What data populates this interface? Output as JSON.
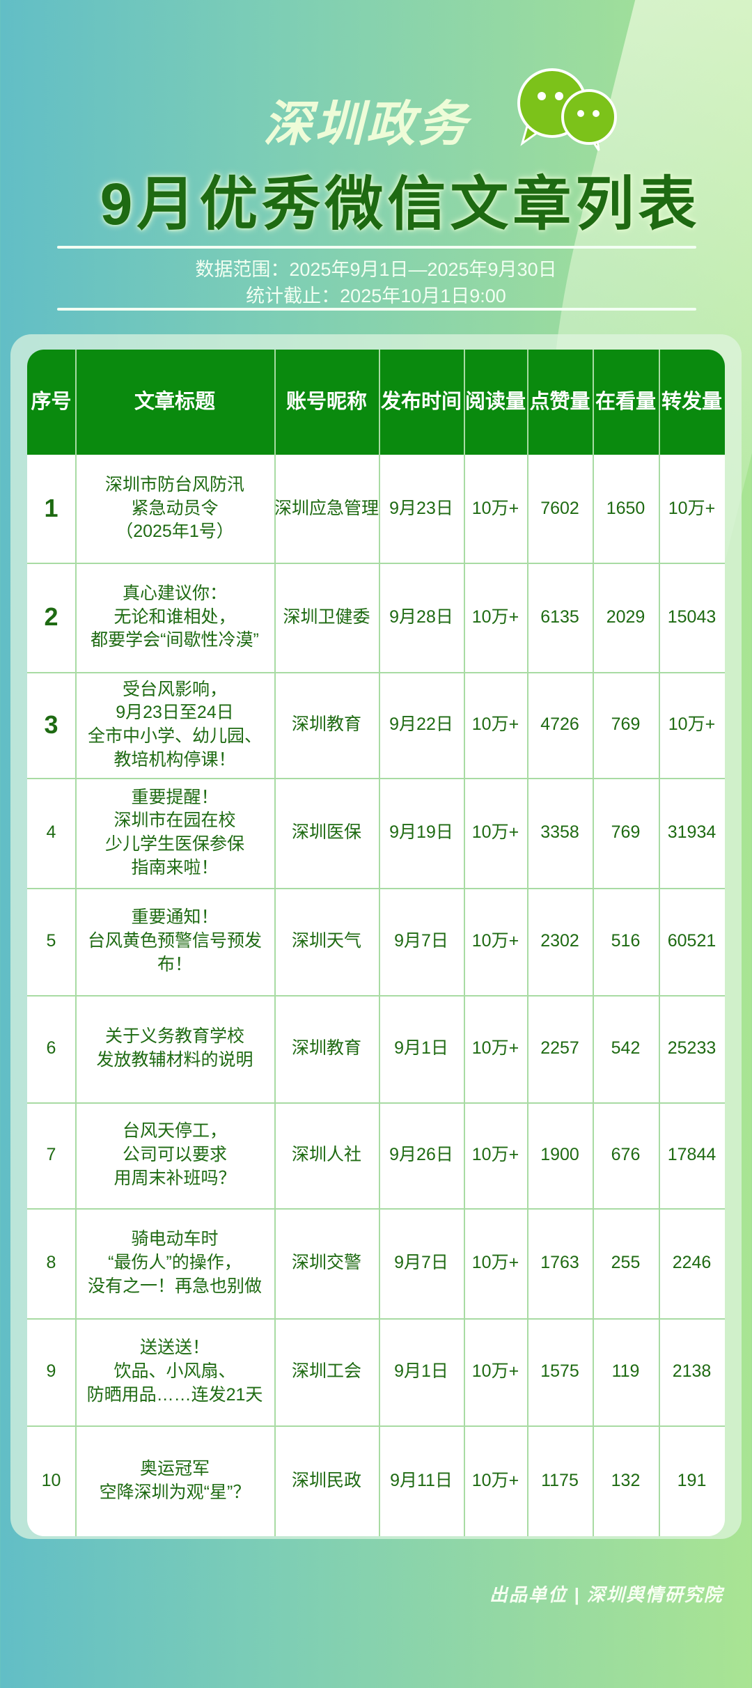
{
  "header": {
    "brand": "深圳政务",
    "title": "9月优秀微信文章列表",
    "icon": "wechat-icon",
    "data_range": "数据范围：2025年9月1日—2025年9月30日",
    "cutoff": "统计截止：2025年10月1日9:00"
  },
  "colors": {
    "header_green": "#0a8a0e",
    "text_green": "#1e6a12"
  },
  "table": {
    "columns": [
      "序号",
      "文章标题",
      "账号昵称",
      "发布时间",
      "阅读量",
      "点赞量",
      "在看量",
      "转发量"
    ],
    "rows": [
      [
        "1",
        "深圳市防台风防汛\n紧急动员令\n（2025年1号）",
        "深圳应急管理",
        "9月23日",
        "10万+",
        "7602",
        "1650",
        "10万+"
      ],
      [
        "2",
        "真心建议你：\n无论和谁相处，\n都要学会“间歇性冷漠”",
        "深圳卫健委",
        "9月28日",
        "10万+",
        "6135",
        "2029",
        "15043"
      ],
      [
        "3",
        "受台风影响，\n9月23日至24日\n全市中小学、幼儿园、\n教培机构停课！",
        "深圳教育",
        "9月22日",
        "10万+",
        "4726",
        "769",
        "10万+"
      ],
      [
        "4",
        "重要提醒！\n深圳市在园在校\n少儿学生医保参保\n指南来啦！",
        "深圳医保",
        "9月19日",
        "10万+",
        "3358",
        "769",
        "31934"
      ],
      [
        "5",
        "重要通知！\n台风黄色预警信号预发布！",
        "深圳天气",
        "9月7日",
        "10万+",
        "2302",
        "516",
        "60521"
      ],
      [
        "6",
        "关于义务教育学校\n发放教辅材料的说明",
        "深圳教育",
        "9月1日",
        "10万+",
        "2257",
        "542",
        "25233"
      ],
      [
        "7",
        "台风天停工，\n公司可以要求\n用周末补班吗？",
        "深圳人社",
        "9月26日",
        "10万+",
        "1900",
        "676",
        "17844"
      ],
      [
        "8",
        "骑电动车时\n“最伤人”的操作，\n没有之一！再急也别做",
        "深圳交警",
        "9月7日",
        "10万+",
        "1763",
        "255",
        "2246"
      ],
      [
        "9",
        "送送送！\n饮品、小风扇、\n防晒用品……连发21天",
        "深圳工会",
        "9月1日",
        "10万+",
        "1575",
        "119",
        "2138"
      ],
      [
        "10",
        "奥运冠军\n空降深圳为观“星”？",
        "深圳民政",
        "9月11日",
        "10万+",
        "1175",
        "132",
        "191"
      ]
    ]
  },
  "footer": "出品单位 | 深圳舆情研究院"
}
